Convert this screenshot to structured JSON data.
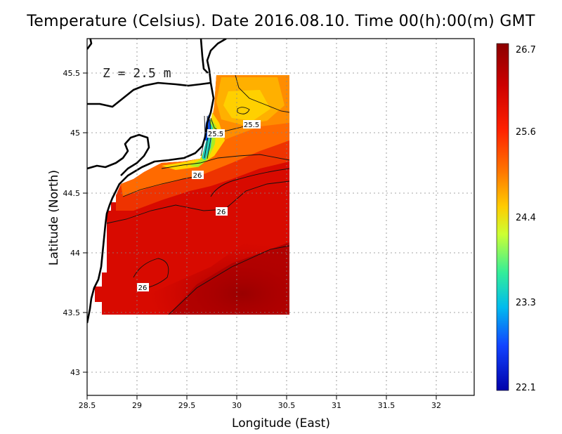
{
  "title": "Temperature (Celsius). Date 2016.08.10. Time 00(h):00(m) GMT",
  "depth_label": "Z = 2.5 m",
  "xlabel": "Longitude (East)",
  "ylabel": "Latitude (North)",
  "x_ticks": [
    "28.5",
    "29",
    "29.5",
    "30",
    "30.5",
    "31",
    "31.5",
    "32"
  ],
  "y_ticks": [
    "43",
    "43.5",
    "44",
    "44.5",
    "45",
    "45.5"
  ],
  "colorbar": {
    "ticks": [
      "26.7",
      "25.6",
      "24.4",
      "23.3",
      "22.1"
    ],
    "colors": [
      "#8b0000",
      "#cc0000",
      "#ff2200",
      "#ff7700",
      "#ffcc00",
      "#aaff44",
      "#22ddcc",
      "#1188ff",
      "#0000aa"
    ]
  },
  "contour_labels": [
    "25.5",
    "25.5",
    "26",
    "26",
    "26"
  ],
  "chart_data": {
    "type": "heatmap",
    "title": "Temperature (Celsius). Date 2016.08.10. Time 00(h):00(m) GMT",
    "xlabel": "Longitude (East)",
    "ylabel": "Latitude (North)",
    "xlim": [
      28.5,
      32.4
    ],
    "ylim": [
      42.8,
      45.8
    ],
    "value_range": [
      22.1,
      26.7
    ],
    "grid": true,
    "data_extent": {
      "lon": [
        28.65,
        30.55
      ],
      "lat": [
        43.5,
        45.5
      ]
    },
    "contour_levels": [
      25.5,
      26
    ]
  }
}
